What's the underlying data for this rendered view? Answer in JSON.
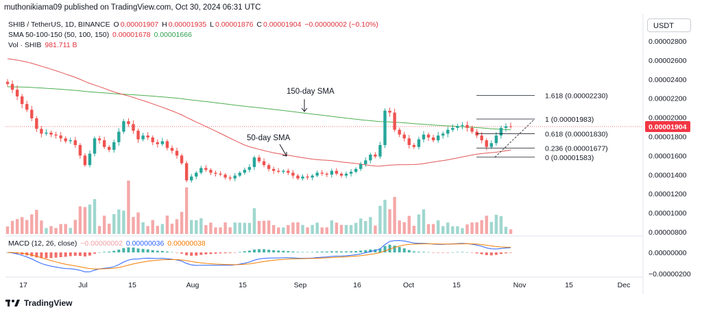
{
  "header": {
    "published": "muthonikiama09 published on TradingView.com, Oct 30, 2024 06:31 UTC"
  },
  "legend": {
    "symbol": "SHIB / TetherUS, 1D, BINANCE",
    "ohlc": [
      {
        "key": "O",
        "value": "0.00001907"
      },
      {
        "key": "H",
        "value": "0.00001935"
      },
      {
        "key": "L",
        "value": "0.00001876"
      },
      {
        "key": "C",
        "value": "0.00001904"
      }
    ],
    "change": "−0.00000002 (−0.10%)",
    "sma_label": "SMA 50-100-150 (50, 100, 150)",
    "sma_values": [
      "0.00001678",
      "0.00001666"
    ],
    "vol_label": "Vol · SHIB",
    "vol_value": "981.711 B",
    "macd_label": "MACD (12, 26, close)",
    "macd_values": [
      "−0.00000002",
      "0.00000036",
      "0.00000038"
    ]
  },
  "currency_button": "USDT",
  "footer_brand": "TradingView",
  "colors": {
    "up": "#26a69a",
    "down": "#ef5350",
    "sma50": "#e35555",
    "sma150": "#4caf50",
    "macd": "#2962ff",
    "signal": "#f57c00",
    "price_tag": "#f23645"
  },
  "chart_data": {
    "type": "candlestick",
    "price_axis": {
      "ticks": [
        "0.00002800",
        "0.00002600",
        "0.00002400",
        "0.00002200",
        "0.00002000",
        "0.00001800",
        "0.00001600",
        "0.00001400",
        "0.00001200",
        "0.00001000",
        "0.00000800"
      ],
      "last_price": "0.00001904"
    },
    "macd_axis": {
      "ticks": [
        "0.00000000",
        "−0.00000200"
      ]
    },
    "x_ticks": [
      "17",
      "Jul",
      "15",
      "Aug",
      "15",
      "Sep",
      "16",
      "Oct",
      "15",
      "Nov",
      "15",
      "Dec"
    ],
    "annotations": [
      "150-day SMA",
      "50-day SMA"
    ],
    "fib_levels": [
      {
        "label": "1.618 (0.00002230)",
        "value": 2.23e-05
      },
      {
        "label": "1 (0.00001983)",
        "value": 1.983e-05
      },
      {
        "label": "0.618 (0.00001830)",
        "value": 1.83e-05
      },
      {
        "label": "0.236 (0.00001677)",
        "value": 1.677e-05
      },
      {
        "label": "0 (0.00001583)",
        "value": 1.583e-05
      }
    ],
    "candles_close_approx": [
      2.35e-05,
      2.29e-05,
      2.22e-05,
      2.14e-05,
      2.08e-05,
      1.99e-05,
      1.88e-05,
      1.83e-05,
      1.84e-05,
      1.82e-05,
      1.81e-05,
      1.78e-05,
      1.75e-05,
      1.76e-05,
      1.71e-05,
      1.6e-05,
      1.5e-05,
      1.62e-05,
      1.78e-05,
      1.76e-05,
      1.69e-05,
      1.66e-05,
      1.74e-05,
      1.85e-05,
      1.96e-05,
      1.93e-05,
      1.86e-05,
      1.77e-05,
      1.81e-05,
      1.79e-05,
      1.74e-05,
      1.72e-05,
      1.75e-05,
      1.68e-05,
      1.65e-05,
      1.6e-05,
      1.52e-05,
      1.34e-05,
      1.38e-05,
      1.42e-05,
      1.47e-05,
      1.45e-05,
      1.42e-05,
      1.41e-05,
      1.4e-05,
      1.37e-05,
      1.36e-05,
      1.39e-05,
      1.42e-05,
      1.45e-05,
      1.48e-05,
      1.58e-05,
      1.54e-05,
      1.5e-05,
      1.46e-05,
      1.44e-05,
      1.43e-05,
      1.44e-05,
      1.42e-05,
      1.39e-05,
      1.36e-05,
      1.38e-05,
      1.37e-05,
      1.39e-05,
      1.42e-05,
      1.41e-05,
      1.4e-05,
      1.44e-05,
      1.41e-05,
      1.39e-05,
      1.41e-05,
      1.43e-05,
      1.46e-05,
      1.51e-05,
      1.55e-05,
      1.61e-05,
      1.59e-05,
      1.71e-05,
      2.07e-05,
      2.05e-05,
      1.87e-05,
      1.82e-05,
      1.78e-05,
      1.71e-05,
      1.69e-05,
      1.77e-05,
      1.82e-05,
      1.79e-05,
      1.76e-05,
      1.81e-05,
      1.83e-05,
      1.87e-05,
      1.89e-05,
      1.91e-05,
      1.92e-05,
      1.89e-05,
      1.85e-05,
      1.81e-05,
      1.76e-05,
      1.69e-05,
      1.73e-05,
      1.81e-05,
      1.89e-05,
      1.907e-05,
      1.904e-05
    ],
    "sma50_note": "red moving average",
    "sma150_note": "green moving average"
  }
}
